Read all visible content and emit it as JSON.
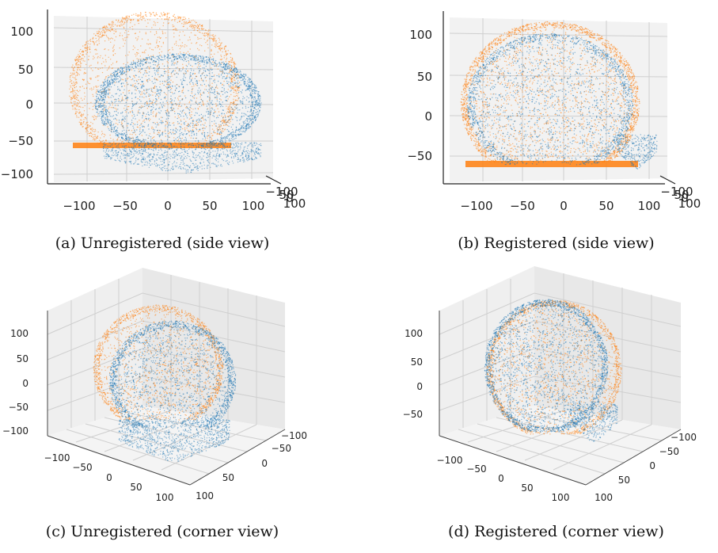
{
  "colors": {
    "unregistered_cloud": "#ff7f0e",
    "reference_cloud": "#1f77b4"
  },
  "captions": {
    "a": "(a) Unregistered (side view)",
    "b": "(b) Registered (side view)",
    "c": "(c) Unregistered (corner view)",
    "d": "(d) Registered (corner view)"
  },
  "chart_data": [
    {
      "type": "scatter",
      "id": "a",
      "view": "side",
      "xticks": [
        "−100",
        "−50",
        "0",
        "50",
        "100"
      ],
      "zticks": [
        "100",
        "50",
        "0",
        "−50",
        "−100"
      ],
      "depth_tick_overlap": [
        "−100",
        "50",
        "0",
        "100"
      ],
      "series": [
        {
          "color": "orange",
          "state": "unregistered",
          "center": [
            -40,
            20
          ],
          "radius": [
            80,
            90
          ],
          "flat_bottom": -70
        },
        {
          "color": "blue",
          "state": "reference",
          "center": [
            20,
            -5
          ],
          "radius": [
            100,
            65
          ],
          "flat_bottom": -100
        }
      ]
    },
    {
      "type": "scatter",
      "id": "b",
      "view": "side",
      "xticks": [
        "−100",
        "−50",
        "0",
        "50",
        "100"
      ],
      "zticks": [
        "100",
        "50",
        "0",
        "−50"
      ],
      "depth_tick_overlap": [
        "−100",
        "50",
        "0",
        "100"
      ],
      "series": [
        {
          "color": "orange",
          "state": "registered",
          "center": [
            0,
            15
          ],
          "radius": [
            100,
            85
          ],
          "flat_bottom": -65
        },
        {
          "color": "blue",
          "state": "reference",
          "center": [
            0,
            15
          ],
          "radius": [
            100,
            85
          ],
          "flat_bottom": -70
        }
      ]
    },
    {
      "type": "scatter",
      "id": "c",
      "view": "corner",
      "xticks": [
        "−100",
        "−50",
        "0",
        "50",
        "100"
      ],
      "yticks": [
        "−100",
        "−50",
        "0",
        "50",
        "100"
      ],
      "zticks": [
        "100",
        "50",
        "0",
        "−50",
        "−100"
      ],
      "series": [
        {
          "color": "orange",
          "state": "unregistered"
        },
        {
          "color": "blue",
          "state": "reference"
        }
      ]
    },
    {
      "type": "scatter",
      "id": "d",
      "view": "corner",
      "xticks": [
        "−100",
        "−50",
        "0",
        "50",
        "100"
      ],
      "yticks": [
        "−100",
        "−50",
        "0",
        "50",
        "100"
      ],
      "zticks": [
        "100",
        "50",
        "0",
        "−50"
      ],
      "series": [
        {
          "color": "orange",
          "state": "registered"
        },
        {
          "color": "blue",
          "state": "reference"
        }
      ]
    }
  ]
}
